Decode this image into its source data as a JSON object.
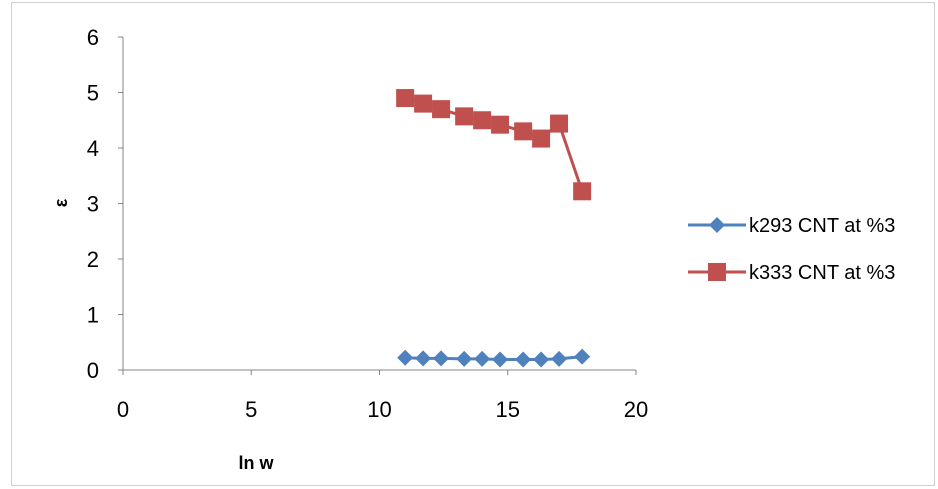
{
  "chart_data": {
    "type": "line",
    "title": "",
    "xlabel": "ln w",
    "ylabel": "ε",
    "xlim": [
      0,
      20
    ],
    "ylim": [
      0,
      6
    ],
    "x_ticks": [
      "0",
      "5",
      "10",
      "15",
      "20"
    ],
    "y_ticks": [
      "0",
      "1",
      "2",
      "3",
      "4",
      "5",
      "6"
    ],
    "grid": false,
    "legend_position": "right",
    "series": [
      {
        "name": "k293 CNT at %3",
        "color": "#4F81BD",
        "marker": "diamond",
        "x": [
          11.0,
          11.7,
          12.4,
          13.3,
          14.0,
          14.7,
          15.6,
          16.3,
          17.0,
          17.9
        ],
        "y": [
          0.22,
          0.21,
          0.21,
          0.2,
          0.2,
          0.19,
          0.19,
          0.19,
          0.2,
          0.24
        ]
      },
      {
        "name": "k333 CNT at %3",
        "color": "#C0504D",
        "marker": "square",
        "x": [
          11.0,
          11.7,
          12.4,
          13.3,
          14.0,
          14.7,
          15.6,
          16.3,
          17.0,
          17.9
        ],
        "y": [
          4.9,
          4.8,
          4.7,
          4.57,
          4.5,
          4.42,
          4.3,
          4.17,
          4.44,
          3.22
        ]
      }
    ]
  }
}
